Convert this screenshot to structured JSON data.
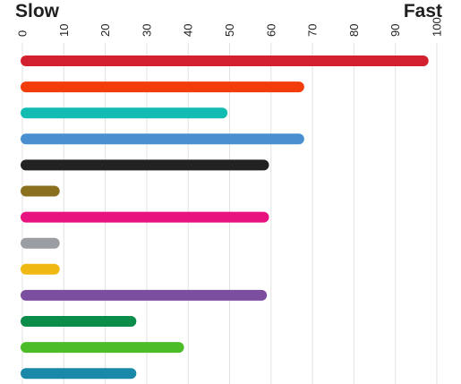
{
  "chart_data": {
    "type": "bar",
    "orientation": "horizontal",
    "scale_labels": {
      "left": "Slow",
      "right": "Fast"
    },
    "xlim": [
      0,
      100
    ],
    "ticks": [
      0,
      10,
      20,
      30,
      40,
      50,
      60,
      70,
      80,
      90,
      100
    ],
    "grid": true,
    "values": [
      98,
      68,
      49.5,
      68,
      59.5,
      9,
      59.5,
      9,
      9,
      59,
      27.5,
      39,
      27.5
    ],
    "colors": [
      "#d3202e",
      "#f23c0a",
      "#12bcb2",
      "#4a90d0",
      "#222222",
      "#8b7020",
      "#e8137f",
      "#9a9ea3",
      "#f0b812",
      "#7b4ea0",
      "#0a8c4a",
      "#4cbc28",
      "#1a88a8"
    ]
  }
}
